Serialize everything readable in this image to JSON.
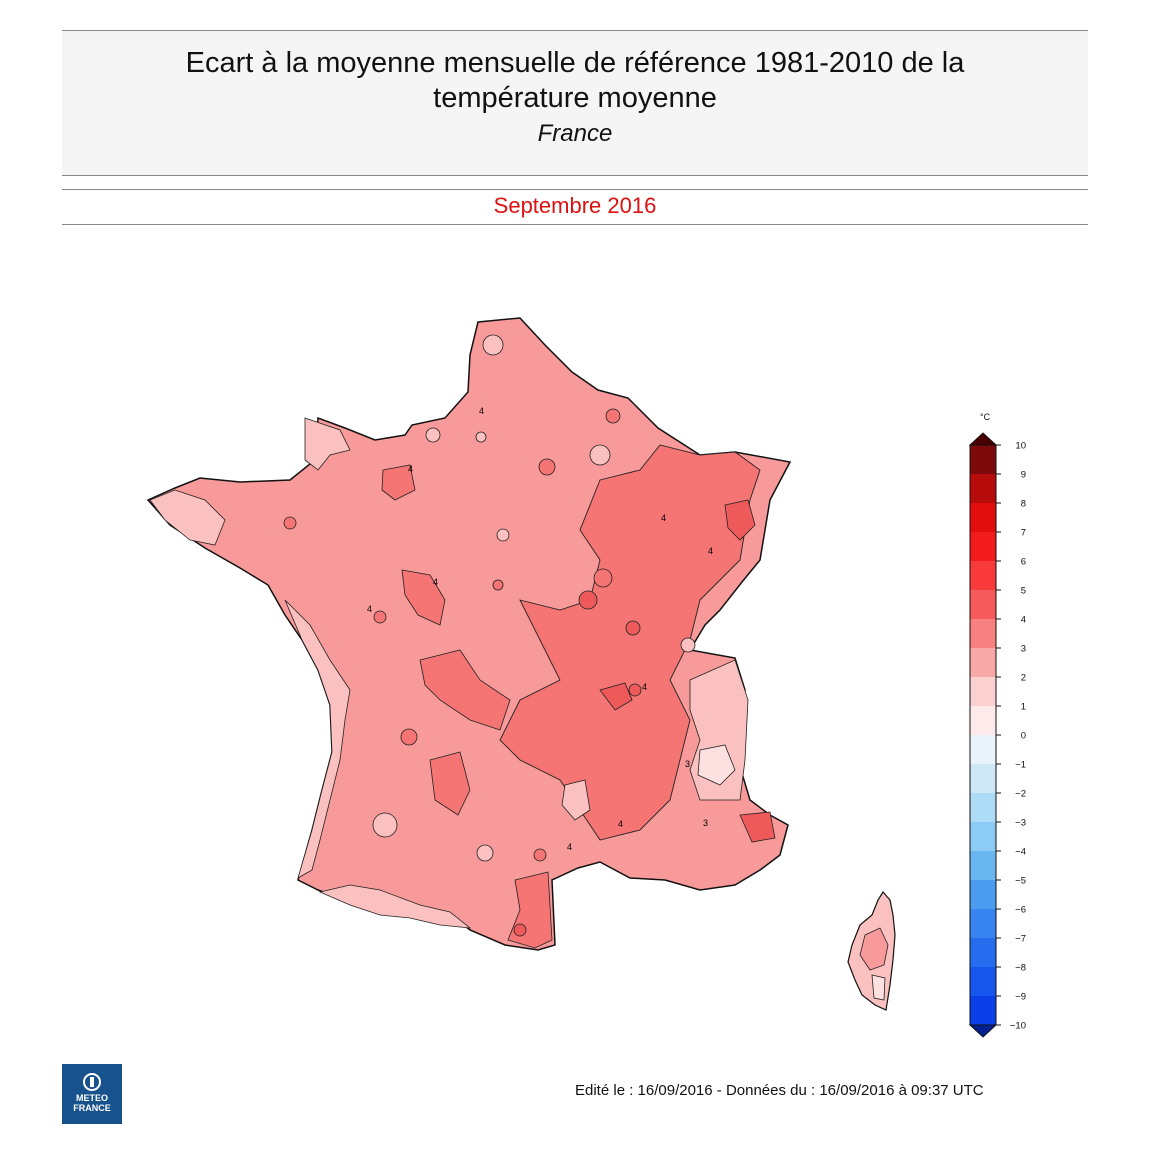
{
  "header": {
    "title_line1": "Ecart à la moyenne mensuelle de référence 1981-2010 de la",
    "title_line2": "température moyenne",
    "region": "France"
  },
  "period": {
    "label": "Septembre 2016",
    "color": "#e01010"
  },
  "legend": {
    "unit": "°C",
    "ticks": [
      "10",
      "9",
      "8",
      "7",
      "6",
      "5",
      "4",
      "3",
      "2",
      "1",
      "0",
      "−1",
      "−2",
      "−3",
      "−4",
      "−5",
      "−6",
      "−7",
      "−8",
      "−9",
      "−10"
    ],
    "colors": [
      "#7d0a0a",
      "#b80c0c",
      "#e20e0e",
      "#f31c1c",
      "#f83a3a",
      "#f75a5a",
      "#f88080",
      "#f9a8a8",
      "#fbd0d0",
      "#fdebeb",
      "#e8f4fa",
      "#cfe8f6",
      "#aedbf6",
      "#8ccbf4",
      "#6ab6f1",
      "#4b9df0",
      "#3684ef",
      "#256cee",
      "#1756ec",
      "#0b3fe8"
    ],
    "cap_top_color": "#4a0000",
    "cap_bottom_color": "#002090"
  },
  "map": {
    "contour_labels": [
      "4",
      "4",
      "4",
      "4",
      "4",
      "4",
      "4",
      "3",
      "3",
      "4",
      "4"
    ],
    "colors": {
      "base": "#f99a9a",
      "warm": "#f57474",
      "hot": "#ee5a5a",
      "cool": "#fbc0c0",
      "cold": "#fde0e0"
    }
  },
  "logo": {
    "line1": "METEO",
    "line2": "FRANCE"
  },
  "footer": {
    "text": "Edité le : 16/09/2016 - Données du : 16/09/2016 à 09:37 UTC"
  }
}
